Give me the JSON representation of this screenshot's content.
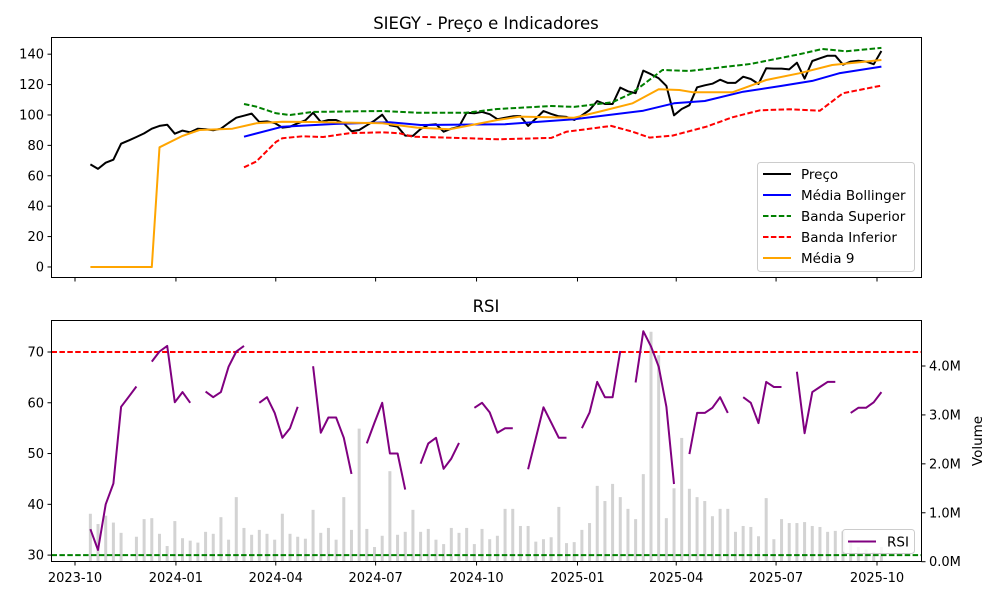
{
  "chart_data": [
    {
      "type": "line",
      "title": "SIEGY - Preço e Indicadores",
      "xlabel": "",
      "ylabel": "",
      "ylim": [
        -6.6,
        151.3
      ],
      "yticks": [
        0,
        20,
        40,
        60,
        80,
        100,
        120,
        140
      ],
      "x_start": "2023-10-15",
      "x_step_days": 7,
      "legend_position": "lower-right",
      "series": [
        {
          "name": "Preço",
          "color": "#000000",
          "style": "solid",
          "values": [
            67.5,
            64.5,
            68.6,
            70.6,
            81.1,
            83.3,
            85.5,
            87.9,
            91,
            92.8,
            93.6,
            87.7,
            89.7,
            88.6,
            91,
            90.6,
            89.9,
            91,
            94.7,
            98.2,
            99.5,
            100.9,
            95.4,
            95.8,
            94.7,
            91.7,
            92.3,
            94.5,
            96.5,
            101.5,
            95.4,
            96.7,
            96.7,
            94.5,
            89.3,
            90.1,
            93.2,
            96.3,
            100.2,
            93.2,
            92.3,
            86.4,
            86.2,
            90.8,
            93.4,
            93.9,
            89,
            91,
            92.3,
            101.5,
            101.1,
            102,
            100.5,
            97.2,
            98.2,
            99.1,
            99.3,
            92.8,
            97.6,
            102.6,
            100.7,
            99.1,
            98.7,
            96.7,
            99.8,
            103.3,
            109.2,
            107.2,
            107.2,
            118,
            115.6,
            114.3,
            129.2,
            126.8,
            124.1,
            119.1,
            99.8,
            103.9,
            106.4,
            118.2,
            119.5,
            120.6,
            123.2,
            121.1,
            121.1,
            125.2,
            123.7,
            120.4,
            130.7,
            130.5,
            130.5,
            130,
            134.4,
            123.9,
            135.5,
            137.3,
            139,
            139,
            133.1,
            135.1,
            135.7,
            135.1,
            133.4,
            142.1
          ]
        },
        {
          "name": "Média Bollinger",
          "color": "#0000ff",
          "style": "solid",
          "points": [
            [
              20,
              85.7
            ],
            [
              25,
              92.3
            ],
            [
              32,
              94.1
            ],
            [
              39,
              95.2
            ],
            [
              43,
              93.4
            ],
            [
              54,
              93.9
            ],
            [
              63,
              97.2
            ],
            [
              72,
              102.8
            ],
            [
              76,
              107.7
            ],
            [
              80,
              109.2
            ],
            [
              85,
              115.3
            ],
            [
              90,
              119.1
            ],
            [
              94,
              122.4
            ],
            [
              97.5,
              127.4
            ],
            [
              103,
              131.8
            ]
          ]
        },
        {
          "name": "Banda Superior",
          "color": "#008000",
          "style": "dashed",
          "points": [
            [
              20,
              107.2
            ],
            [
              21.6,
              105.5
            ],
            [
              24.2,
              101.1
            ],
            [
              26,
              100
            ],
            [
              29,
              102
            ],
            [
              38,
              102.6
            ],
            [
              42.5,
              101.5
            ],
            [
              49,
              101.5
            ],
            [
              53,
              103.9
            ],
            [
              60,
              105.9
            ],
            [
              63,
              105.3
            ],
            [
              68,
              108.4
            ],
            [
              70.5,
              114.3
            ],
            [
              74.5,
              129.6
            ],
            [
              78,
              128.9
            ],
            [
              86,
              133.6
            ],
            [
              92.3,
              139.9
            ],
            [
              95.3,
              143.4
            ],
            [
              98.4,
              141.9
            ],
            [
              103,
              144.1
            ]
          ]
        },
        {
          "name": "Banda Inferior",
          "color": "#ff0000",
          "style": "dashed",
          "points": [
            [
              20,
              65.6
            ],
            [
              21.6,
              69.3
            ],
            [
              24.2,
              82.4
            ],
            [
              25,
              84.7
            ],
            [
              27.6,
              86
            ],
            [
              30.3,
              85.5
            ],
            [
              33.7,
              88
            ],
            [
              38,
              88.6
            ],
            [
              40.2,
              88
            ],
            [
              42,
              85.7
            ],
            [
              49,
              84.7
            ],
            [
              53,
              84
            ],
            [
              60,
              84.9
            ],
            [
              62,
              89
            ],
            [
              64.5,
              90.6
            ],
            [
              67.8,
              92.8
            ],
            [
              70.6,
              89
            ],
            [
              72.8,
              85.1
            ],
            [
              75.8,
              86.4
            ],
            [
              80.2,
              92.3
            ],
            [
              83.6,
              98.5
            ],
            [
              87.2,
              103.1
            ],
            [
              91,
              103.7
            ],
            [
              95,
              102.8
            ],
            [
              98,
              114.3
            ],
            [
              103,
              119.3
            ]
          ]
        },
        {
          "name": "Média 9",
          "color": "#ffa500",
          "style": "solid",
          "points": [
            [
              0,
              0
            ],
            [
              8,
              0
            ],
            [
              9,
              78.7
            ],
            [
              12,
              86.2
            ],
            [
              14.2,
              90.1
            ],
            [
              18.5,
              91
            ],
            [
              21.6,
              94.5
            ],
            [
              25,
              95.6
            ],
            [
              29,
              95.4
            ],
            [
              38,
              94.5
            ],
            [
              42.5,
              91.7
            ],
            [
              46.8,
              90.6
            ],
            [
              53,
              96.7
            ],
            [
              55.9,
              98.9
            ],
            [
              63,
              98.2
            ],
            [
              66.3,
              102.2
            ],
            [
              70.6,
              107.7
            ],
            [
              74,
              116.9
            ],
            [
              76.7,
              116.4
            ],
            [
              78.5,
              114.9
            ],
            [
              83.6,
              114.9
            ],
            [
              88,
              123
            ],
            [
              92.3,
              127.4
            ],
            [
              96.6,
              132.9
            ],
            [
              103,
              136.2
            ]
          ]
        }
      ]
    },
    {
      "type": "line",
      "title": "RSI",
      "xlabel": "",
      "ylabel": "",
      "y2label": "Volume",
      "ylim": [
        28.7,
        76.3
      ],
      "yticks": [
        30,
        40,
        50,
        60,
        70
      ],
      "y2lim": [
        0,
        4.94
      ],
      "y2ticks": [
        0,
        1,
        2,
        3,
        4
      ],
      "y2tick_labels": [
        "0.0M",
        "1.0M",
        "2.0M",
        "3.0M",
        "4.0M"
      ],
      "x_start": "2023-10-15",
      "x_step_days": 7,
      "xticks": [
        "2023-10",
        "2024-01",
        "2024-04",
        "2024-07",
        "2024-10",
        "2025-01",
        "2025-04",
        "2025-07",
        "2025-10"
      ],
      "legend_position": "lower-right",
      "overbought": 70,
      "oversold": 30,
      "overbought_color": "#ff0000",
      "oversold_color": "#008000",
      "rsi": {
        "name": "RSI",
        "color": "#800080",
        "values": [
          35.1,
          31,
          40,
          44.1,
          59.2,
          61.2,
          63.2,
          null,
          68.1,
          70.1,
          71.2,
          60.1,
          62.1,
          60,
          null,
          62.2,
          61.1,
          62.1,
          67.1,
          70.1,
          71.2,
          null,
          60,
          61.1,
          58,
          53.1,
          55,
          59.2,
          null,
          67.2,
          54.1,
          57.1,
          57.1,
          53.1,
          46,
          null,
          52,
          56.1,
          60,
          50,
          50,
          42.9,
          null,
          48,
          52,
          53.1,
          47,
          49,
          52.1,
          null,
          59,
          60,
          58.1,
          54.1,
          55,
          55,
          null,
          46.9,
          53,
          59.1,
          56.1,
          53.1,
          53.1,
          null,
          55,
          58.1,
          64.1,
          61.1,
          61.1,
          70.2,
          null,
          64,
          74.1,
          71.1,
          67.1,
          59.2,
          44,
          null,
          49.9,
          58,
          58,
          59,
          61.1,
          58,
          null,
          61.1,
          60,
          56,
          64.1,
          63.1,
          63.1,
          null,
          66.1,
          54,
          62.1,
          63.1,
          64.1,
          64.1,
          null,
          58,
          59,
          59,
          60.1,
          62.1
        ]
      },
      "volume_millions": {
        "color": "#d3d3d3",
        "values": [
          0.98,
          0.77,
          0.94,
          0.8,
          0.59,
          0,
          0.51,
          0.87,
          0.89,
          0.57,
          0.32,
          0.83,
          0.48,
          0.43,
          0.39,
          0.61,
          0.57,
          0.91,
          0.45,
          1.32,
          0.69,
          0.55,
          0.65,
          0.57,
          0.45,
          0.98,
          0.57,
          0.51,
          0.47,
          1.06,
          0.59,
          0.69,
          0.45,
          1.32,
          0.65,
          2.72,
          0.67,
          0.3,
          0.53,
          1.85,
          0.55,
          0.61,
          1.06,
          0.61,
          0.67,
          0.45,
          0.36,
          0.69,
          0.59,
          0.69,
          0.36,
          0.67,
          0.46,
          0.53,
          1.08,
          1.08,
          0.73,
          0.73,
          0.41,
          0.46,
          0.5,
          1.12,
          0.38,
          0.4,
          0.65,
          0.79,
          1.55,
          1.24,
          1.59,
          1.32,
          1.08,
          0.87,
          1.79,
          4.7,
          4.22,
          0.89,
          1.5,
          2.53,
          1.49,
          1.32,
          1.24,
          0.93,
          1.08,
          1.08,
          0.61,
          0.73,
          0.71,
          0.52,
          1.3,
          0.46,
          0.87,
          0.79,
          0.79,
          0.81,
          0.73,
          0.71,
          0.61,
          0.63,
          0.62,
          0.4,
          0.3,
          0.25,
          0.2,
          0.3
        ]
      }
    }
  ]
}
